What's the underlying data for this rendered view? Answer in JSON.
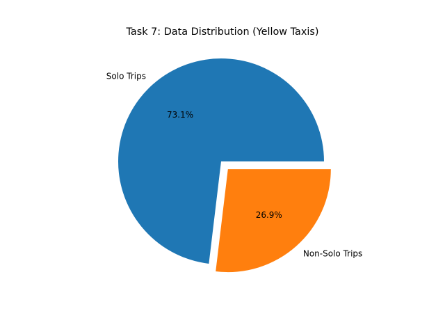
{
  "chart_data": {
    "type": "pie",
    "title": "Task 7: Data Distribution (Yellow Taxis)",
    "categories": [
      "Solo Trips",
      "Non-Solo Trips"
    ],
    "values": [
      73.1,
      26.9
    ],
    "percent_labels": [
      "73.1%",
      "26.9%"
    ],
    "colors": [
      "#1f77b4",
      "#ff7f0e"
    ],
    "explode": [
      0,
      0.1
    ],
    "legend": "none"
  }
}
